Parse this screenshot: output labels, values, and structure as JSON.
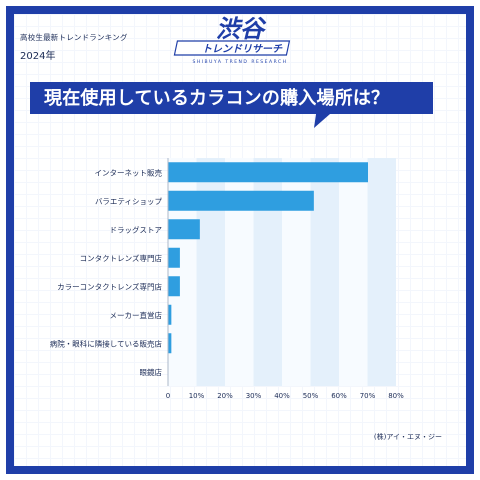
{
  "header": {
    "subtitle": "高校生最新トレンドランキング",
    "year": "2024年",
    "logo_text": "渋谷",
    "logo_subtext": "トレンドリサーチ",
    "logo_tagline": "SHIBUYA TREND RESEARCH"
  },
  "colors": {
    "brand": "#1f3ea8",
    "bar": "#2f9ee0"
  },
  "chart_data": {
    "type": "bar",
    "orientation": "horizontal",
    "title": "現在使用しているカラコンの購入場所は？",
    "categories": [
      "インターネット販売",
      "バラエティショップ",
      "ドラッグストア",
      "コンタクトレンズ専門店",
      "カラーコンタクトレンズ専門店",
      "メーカー直営店",
      "病院・眼科に隣接している販売店",
      "眼鏡店"
    ],
    "values": [
      70,
      51,
      11,
      4,
      4,
      1,
      1,
      0
    ],
    "unit": "%",
    "xlim": [
      0,
      80
    ],
    "xticks": [
      "0",
      "10%",
      "20%",
      "30%",
      "40%",
      "50%",
      "60%",
      "70%",
      "80%"
    ],
    "grid": true
  },
  "footer": {
    "source": "(株)アイ・エヌ・ジー"
  }
}
